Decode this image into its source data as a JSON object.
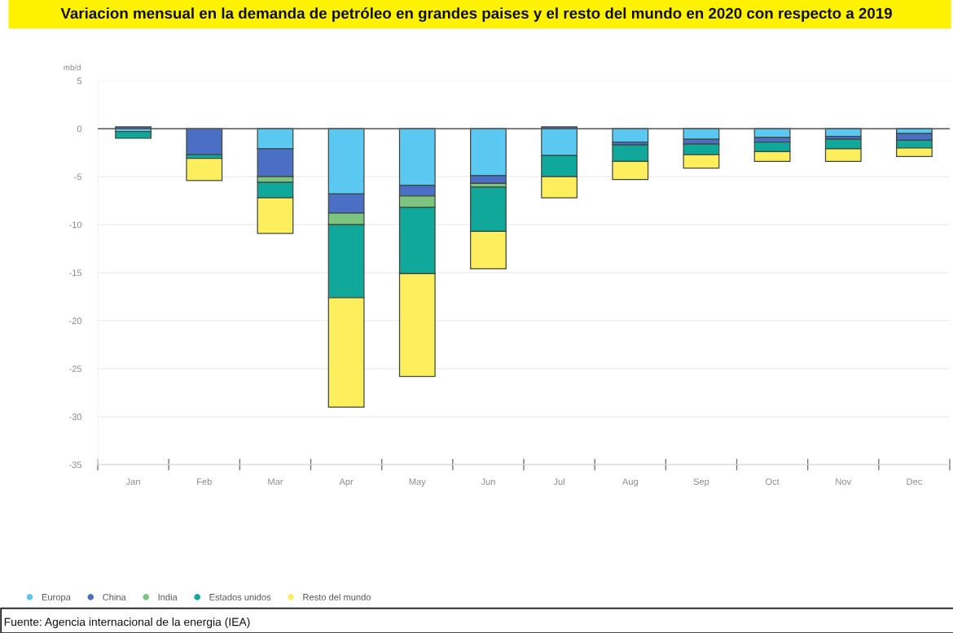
{
  "chart_data": {
    "type": "bar",
    "stacked": true,
    "title": "Variacion mensual en la demanda de petróleo en grandes paises y el resto del mundo en 2020 con respecto a 2019",
    "ylabel": "mb/d",
    "categories": [
      "Jan",
      "Feb",
      "Mar",
      "Apr",
      "May",
      "Jun",
      "Jul",
      "Aug",
      "Sep",
      "Oct",
      "Nov",
      "Dec"
    ],
    "series": [
      {
        "name": "Europa",
        "color": "#5bc8f2",
        "values": [
          -0.3,
          null,
          -2.1,
          -6.8,
          -5.9,
          -4.9,
          -2.8,
          -1.4,
          -1.1,
          -0.9,
          -0.8,
          -0.5
        ]
      },
      {
        "name": "China",
        "color": "#4a6fc4",
        "values": [
          0.2,
          -2.7,
          -2.9,
          -2.0,
          -1.1,
          -0.8,
          0.2,
          -0.3,
          -0.5,
          -0.5,
          -0.3,
          -0.7
        ]
      },
      {
        "name": "India",
        "color": "#7cc47f",
        "values": [
          null,
          null,
          -0.6,
          -1.2,
          -1.2,
          -0.4,
          null,
          null,
          null,
          null,
          null,
          null
        ]
      },
      {
        "name": "Estados unidos",
        "color": "#10a89a",
        "values": [
          -0.7,
          -0.4,
          -1.6,
          -7.6,
          -6.9,
          -4.6,
          -2.2,
          -1.7,
          -1.1,
          -1.0,
          -1.0,
          -0.8
        ]
      },
      {
        "name": "Resto del mundo",
        "color": "#fcee5c",
        "values": [
          null,
          -2.3,
          -3.7,
          -11.4,
          -10.7,
          -3.9,
          -2.2,
          -1.9,
          -1.4,
          -1.0,
          -1.3,
          -0.9
        ]
      }
    ],
    "ylim": [
      -35,
      5
    ],
    "yticks": [
      5,
      0,
      -5,
      -10,
      -15,
      -20,
      -25,
      -30,
      -35
    ],
    "ref_lines": [
      {
        "axis": "y",
        "value": 0,
        "color": "#555555"
      }
    ],
    "grid": "y",
    "legend": "bottom left",
    "annotations": [
      "Fuente: Agencia internacional de la energia (IEA)"
    ]
  }
}
